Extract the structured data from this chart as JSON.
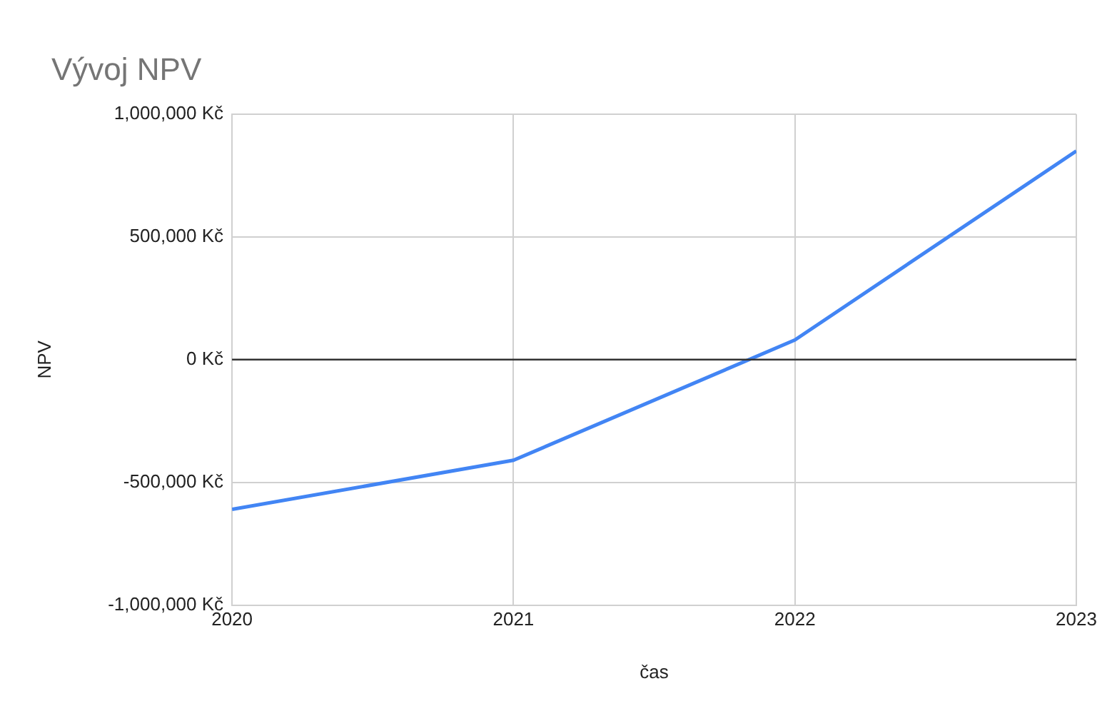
{
  "chart_data": {
    "type": "line",
    "title": "Vývoj NPV",
    "xlabel": "čas",
    "ylabel": "NPV",
    "x": [
      2020,
      2021,
      2022,
      2023
    ],
    "series": [
      {
        "color": "#4285f4",
        "values": [
          -610000,
          -410000,
          80000,
          850000
        ]
      }
    ],
    "xlim": [
      2020,
      2023
    ],
    "xticks": [
      2020,
      2021,
      2022,
      2023
    ],
    "ylim": [
      -1000000,
      1000000
    ],
    "yticks": [
      {
        "value": -1000000,
        "label": "-1,000,000 Kč"
      },
      {
        "value": -500000,
        "label": "-500,000 Kč"
      },
      {
        "value": 0,
        "label": "0 Kč"
      },
      {
        "value": 500000,
        "label": "500,000 Kč"
      },
      {
        "value": 1000000,
        "label": "1,000,000 Kč"
      }
    ],
    "ref_lines": [
      {
        "axis": "y",
        "value": 0,
        "color": "#333333"
      }
    ],
    "grid": true,
    "legend": false,
    "marker": "none",
    "line_style": "solid"
  }
}
